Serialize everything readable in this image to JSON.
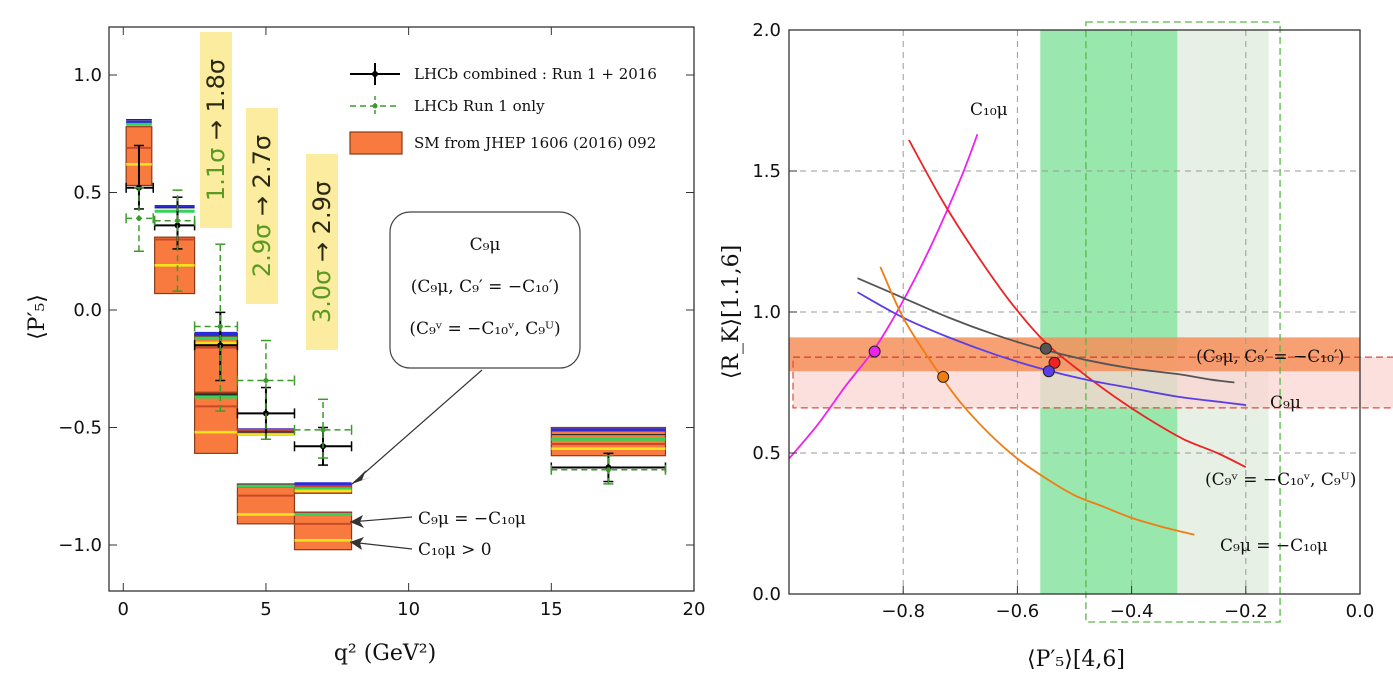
{
  "chart_data": [
    {
      "type": "errorbar-bins",
      "panel": "left",
      "xlabel": "q² (GeV²)",
      "ylabel": "⟨P′₅⟩",
      "xlim": [
        -0.5,
        20
      ],
      "ylim": [
        -1.2,
        1.2
      ],
      "xticks": [
        "0",
        "5",
        "10",
        "15",
        "20"
      ],
      "yticks": [
        "1.0",
        "0.5",
        "0.0",
        "−0.5",
        "−1.0"
      ],
      "legend": [
        {
          "label": "LHCb combined : Run 1 + 2016",
          "style": "black-errorbar"
        },
        {
          "label": "LHCb Run 1 only",
          "style": "green-dashed-errorbar"
        },
        {
          "label": "SM from JHEP 1606 (2016) 092",
          "style": "orange-box"
        }
      ],
      "series": [
        {
          "name": "LHCb combined : Run 1 + 2016",
          "color": "#000000",
          "points": [
            {
              "x": 0.55,
              "xerr": [
                0.45,
                0.5
              ],
              "y": 0.52,
              "yerr": [
                0.09,
                0.18
              ]
            },
            {
              "x": 1.9,
              "xerr": [
                0.8,
                0.6
              ],
              "y": 0.36,
              "yerr": [
                0.1,
                0.12
              ]
            },
            {
              "x": 3.4,
              "xerr": [
                0.9,
                0.6
              ],
              "y": -0.15,
              "yerr": [
                0.15,
                0.14
              ]
            },
            {
              "x": 5.0,
              "xerr": [
                1.0,
                1.0
              ],
              "y": -0.44,
              "yerr": [
                0.11,
                0.11
              ]
            },
            {
              "x": 7.0,
              "xerr": [
                1.0,
                1.0
              ],
              "y": -0.58,
              "yerr": [
                0.08,
                0.08
              ]
            },
            {
              "x": 17.0,
              "xerr": [
                2.0,
                2.0
              ],
              "y": -0.67,
              "yerr": [
                0.06,
                0.06
              ]
            }
          ]
        },
        {
          "name": "LHCb Run 1 only",
          "color": "#3f9a2e",
          "points": [
            {
              "x": 0.55,
              "xerr": [
                0.45,
                0.5
              ],
              "y": 0.39,
              "yerr": [
                0.14,
                0.13
              ]
            },
            {
              "x": 1.9,
              "xerr": [
                0.8,
                0.6
              ],
              "y": 0.38,
              "yerr": [
                0.3,
                0.13
              ]
            },
            {
              "x": 3.4,
              "xerr": [
                0.9,
                0.6
              ],
              "y": -0.07,
              "yerr": [
                0.36,
                0.35
              ]
            },
            {
              "x": 5.0,
              "xerr": [
                1.0,
                1.0
              ],
              "y": -0.3,
              "yerr": [
                0.25,
                0.17
              ]
            },
            {
              "x": 7.0,
              "xerr": [
                1.0,
                1.0
              ],
              "y": -0.51,
              "yerr": [
                0.12,
                0.13
              ]
            },
            {
              "x": 17.0,
              "xerr": [
                2.0,
                2.0
              ],
              "y": -0.68,
              "yerr": [
                0.06,
                0.06
              ]
            }
          ]
        }
      ],
      "boxes": [
        {
          "x0": 0.1,
          "x1": 1.0,
          "sm": [
            0.53,
            0.78
          ],
          "lines": {
            "c9": 0.8,
            "c9c10p": 0.81,
            "c9vu": 0.79,
            "c9c10": 0.69,
            "c10": 0.62
          }
        },
        {
          "x0": 1.1,
          "x1": 2.5,
          "sm": [
            0.07,
            0.31
          ],
          "lines": {
            "c9": 0.44,
            "c9c10p": 0.435,
            "c9vu": 0.42,
            "c9c10": 0.3,
            "c10": 0.19
          }
        },
        {
          "x0": 2.5,
          "x1": 4.0,
          "sm": [
            -0.39,
            -0.1
          ],
          "lines": {
            "c9": -0.1,
            "c9c10p": -0.11,
            "c9vu": -0.12,
            "c9c10": -0.16,
            "c10": -0.14
          }
        },
        {
          "x0": 2.5,
          "x1": 4.0,
          "sm": [
            -0.61,
            -0.35
          ],
          "lines": {
            "c9": -0.36,
            "c9c10p": -0.36,
            "c9vu": -0.37,
            "c9c10": -0.41,
            "c10": -0.52
          }
        },
        {
          "x0": 4.0,
          "x1": 6.0,
          "sm": [
            -0.53,
            -0.51
          ],
          "lines": {
            "c9": -0.51,
            "c9c10p": -0.52,
            "c9vu": -0.53,
            "c9c10": -0.51,
            "c10": -0.53
          }
        },
        {
          "x0": 4.0,
          "x1": 6.0,
          "sm": [
            -0.91,
            -0.74
          ],
          "lines": {
            "c9": -0.75,
            "c9c10p": -0.75,
            "c9vu": -0.75,
            "c9c10": -0.79,
            "c10": -0.87
          }
        },
        {
          "x0": 6.0,
          "x1": 8.0,
          "sm": [
            -0.78,
            -0.74
          ],
          "lines": {
            "c9": -0.74,
            "c9c10p": -0.75,
            "c9vu": -0.76,
            "c9c10": -0.75,
            "c10": -0.77
          }
        },
        {
          "x0": 6.0,
          "x1": 8.0,
          "sm": [
            -1.02,
            -0.86
          ],
          "lines": {
            "c9": -0.87,
            "c9c10p": -0.87,
            "c9vu": -0.87,
            "c9c10": -0.91,
            "c10": -0.98
          }
        },
        {
          "x0": 15.0,
          "x1": 19.0,
          "sm": [
            -0.62,
            -0.5
          ],
          "lines": {
            "c9": -0.51,
            "c9c10p": -0.53,
            "c9vu": -0.55,
            "c9c10": -0.57,
            "c10": -0.59
          }
        }
      ],
      "significance": [
        {
          "text_from": "1.1σ",
          "text_to": "1.8σ",
          "arrow": "→"
        },
        {
          "text_from": "2.9σ",
          "text_to": "2.7σ",
          "arrow": "→"
        },
        {
          "text_from": "3.0σ",
          "text_to": "2.9σ",
          "arrow": "→"
        }
      ],
      "callout_box": [
        "C₉μ",
        "(C₉μ, C₉′ = −C₁₀′)",
        "(C₉ᵛ = −C₁₀ᵛ, C₉ᵁ)"
      ],
      "annotations": [
        "C₉μ = −C₁₀μ",
        "C₁₀μ > 0"
      ]
    },
    {
      "type": "line",
      "panel": "right",
      "xlabel": "⟨P′₅⟩[4,6]",
      "ylabel": "⟨R_K⟩[1.1,6]",
      "xlim": [
        -1.0,
        0.0
      ],
      "ylim": [
        0.0,
        2.0
      ],
      "xticks": [
        "−0.8",
        "−0.6",
        "−0.4",
        "−0.2",
        "0.0"
      ],
      "yticks": [
        "0.0",
        "0.5",
        "1.0",
        "1.5",
        "2.0"
      ],
      "bands": {
        "green_solid_x": [
          -0.56,
          -0.32
        ],
        "green_light_x": [
          -0.48,
          -0.16
        ],
        "green_dashed_x": [
          -0.48,
          -0.14
        ],
        "orange_solid_y": [
          0.79,
          0.91
        ],
        "red_light_y": [
          0.66,
          0.84
        ],
        "red_dashed_mid_y": 0.84
      },
      "series": [
        {
          "name": "C₁₀μ",
          "color": "#ee22ee",
          "x": [
            -1.0,
            -0.95,
            -0.9,
            -0.85,
            -0.8,
            -0.75,
            -0.7,
            -0.67
          ],
          "y": [
            0.48,
            0.6,
            0.74,
            0.87,
            1.04,
            1.24,
            1.47,
            1.63
          ],
          "marker": {
            "x": -0.85,
            "y": 0.86
          }
        },
        {
          "name": "(C₉ᵛ = −C₁₀ᵛ, C₉ᵁ)",
          "color": "#ee2222",
          "x": [
            -0.79,
            -0.73,
            -0.67,
            -0.61,
            -0.55,
            -0.49,
            -0.43,
            -0.37,
            -0.31,
            -0.25,
            -0.2
          ],
          "y": [
            1.61,
            1.39,
            1.2,
            1.03,
            0.89,
            0.79,
            0.7,
            0.62,
            0.55,
            0.5,
            0.45
          ],
          "marker": {
            "x": -0.535,
            "y": 0.82
          }
        },
        {
          "name": "C₉μ",
          "color": "#5a3fe6",
          "x": [
            -0.88,
            -0.8,
            -0.72,
            -0.64,
            -0.56,
            -0.48,
            -0.4,
            -0.32,
            -0.24,
            -0.2
          ],
          "y": [
            1.07,
            0.98,
            0.91,
            0.85,
            0.8,
            0.76,
            0.73,
            0.7,
            0.68,
            0.67
          ],
          "marker": {
            "x": -0.545,
            "y": 0.79
          }
        },
        {
          "name": "(C₉μ, C₉′ = −C₁₀′)",
          "color": "#555555",
          "x": [
            -0.88,
            -0.8,
            -0.72,
            -0.64,
            -0.56,
            -0.48,
            -0.4,
            -0.32,
            -0.26,
            -0.22
          ],
          "y": [
            1.12,
            1.05,
            0.98,
            0.92,
            0.87,
            0.83,
            0.8,
            0.78,
            0.76,
            0.75
          ],
          "marker": {
            "x": -0.55,
            "y": 0.87
          }
        },
        {
          "name": "C₉μ = −C₁₀μ",
          "color": "#f07d12",
          "x": [
            -0.84,
            -0.8,
            -0.75,
            -0.7,
            -0.65,
            -0.6,
            -0.55,
            -0.5,
            -0.45,
            -0.4,
            -0.35,
            -0.29
          ],
          "y": [
            1.16,
            0.98,
            0.82,
            0.68,
            0.57,
            0.48,
            0.41,
            0.35,
            0.31,
            0.27,
            0.24,
            0.21
          ],
          "marker": {
            "x": -0.73,
            "y": 0.77
          }
        }
      ],
      "labels": [
        "C₁₀μ",
        "(C₉μ, C₉′ = −C₁₀′)",
        "C₉μ",
        "(C₉ᵛ = −C₁₀ᵛ, C₉ᵁ)",
        "C₉μ = −C₁₀μ"
      ]
    }
  ],
  "colors": {
    "sm_fill": "#f97a3e",
    "sm_edge": "#8a3a18",
    "blue_line": "#2b2bd9",
    "green_line": "#33d35a",
    "yellow_line": "#f2e41c",
    "red_line": "#c9482a",
    "sig_bg": "#fbec9f",
    "sig_from": "#5a9a22",
    "sig_to": "#2a2a10",
    "green_band": "#8fe6a6",
    "green_light": "#e6f0e4",
    "orange_band": "#f68f5a",
    "red_light": "#fbd6d2"
  }
}
